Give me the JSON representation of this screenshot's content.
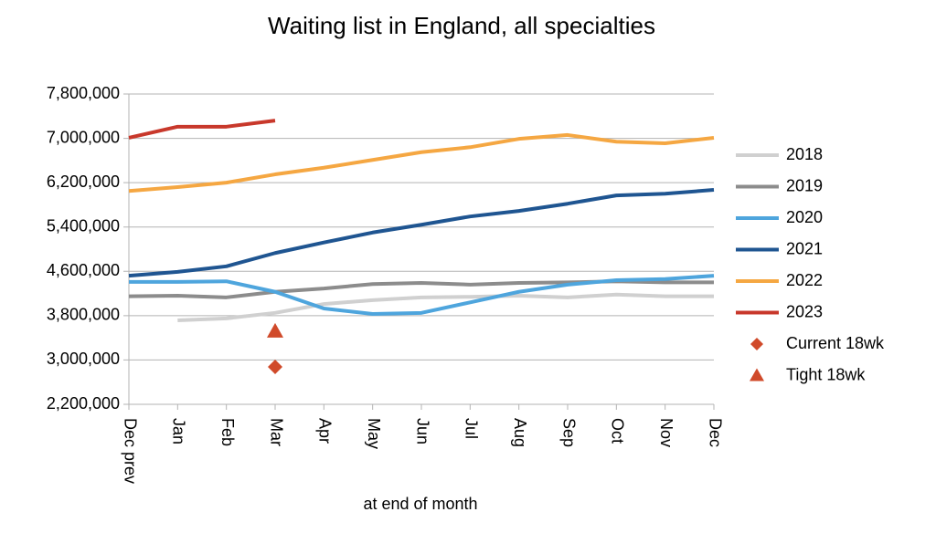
{
  "chart_data": {
    "type": "line",
    "title": "Waiting list in England, all specialties",
    "x_label": "at end of month",
    "categories": [
      "Dec prev",
      "Jan",
      "Feb",
      "Mar",
      "Apr",
      "May",
      "Jun",
      "Jul",
      "Aug",
      "Sep",
      "Oct",
      "Nov",
      "Dec"
    ],
    "ylim": [
      2200000,
      7800000
    ],
    "yticks": [
      {
        "value": 2200000,
        "label": "2,200,000"
      },
      {
        "value": 3000000,
        "label": "3,000,000"
      },
      {
        "value": 3800000,
        "label": "3,800,000"
      },
      {
        "value": 4600000,
        "label": "4,600,000"
      },
      {
        "value": 5400000,
        "label": "5,400,000"
      },
      {
        "value": 6200000,
        "label": "6,200,000"
      },
      {
        "value": 7000000,
        "label": "7,000,000"
      },
      {
        "value": 7800000,
        "label": "7,800,000"
      }
    ],
    "grid": true,
    "legend": "right",
    "series": [
      {
        "name": "2018",
        "color": "#d0d0d0",
        "values": [
          null,
          3715000,
          3750000,
          3850000,
          4010000,
          4080000,
          4130000,
          4140000,
          4160000,
          4130000,
          4180000,
          4150000,
          4150000
        ]
      },
      {
        "name": "2019",
        "color": "#8c8c8c",
        "values": [
          4150000,
          4160000,
          4130000,
          4230000,
          4290000,
          4370000,
          4390000,
          4360000,
          4390000,
          4400000,
          4420000,
          4400000,
          4400000
        ]
      },
      {
        "name": "2020",
        "color": "#4ea5dd",
        "values": [
          4410000,
          4410000,
          4420000,
          4230000,
          3930000,
          3830000,
          3850000,
          4040000,
          4230000,
          4360000,
          4440000,
          4460000,
          4520000
        ]
      },
      {
        "name": "2021",
        "color": "#1f5591",
        "values": [
          4520000,
          4590000,
          4690000,
          4930000,
          5120000,
          5300000,
          5440000,
          5590000,
          5690000,
          5820000,
          5970000,
          6000000,
          6070000
        ]
      },
      {
        "name": "2022",
        "color": "#f5a742",
        "values": [
          6050000,
          6120000,
          6200000,
          6350000,
          6470000,
          6610000,
          6750000,
          6840000,
          6990000,
          7060000,
          6940000,
          6910000,
          7010000
        ]
      },
      {
        "name": "2023",
        "color": "#c8382b",
        "values": [
          7010000,
          7210000,
          7210000,
          7320000,
          null,
          null,
          null,
          null,
          null,
          null,
          null,
          null,
          null
        ]
      },
      {
        "name": "Current 18wk",
        "color": "#d04a2a",
        "marker": "diamond",
        "values": [
          null,
          null,
          null,
          2875000,
          null,
          null,
          null,
          null,
          null,
          null,
          null,
          null,
          null
        ]
      },
      {
        "name": "Tight 18wk",
        "color": "#d04a2a",
        "marker": "triangle",
        "values": [
          null,
          null,
          null,
          3520000,
          null,
          null,
          null,
          null,
          null,
          null,
          null,
          null,
          null
        ]
      }
    ]
  }
}
